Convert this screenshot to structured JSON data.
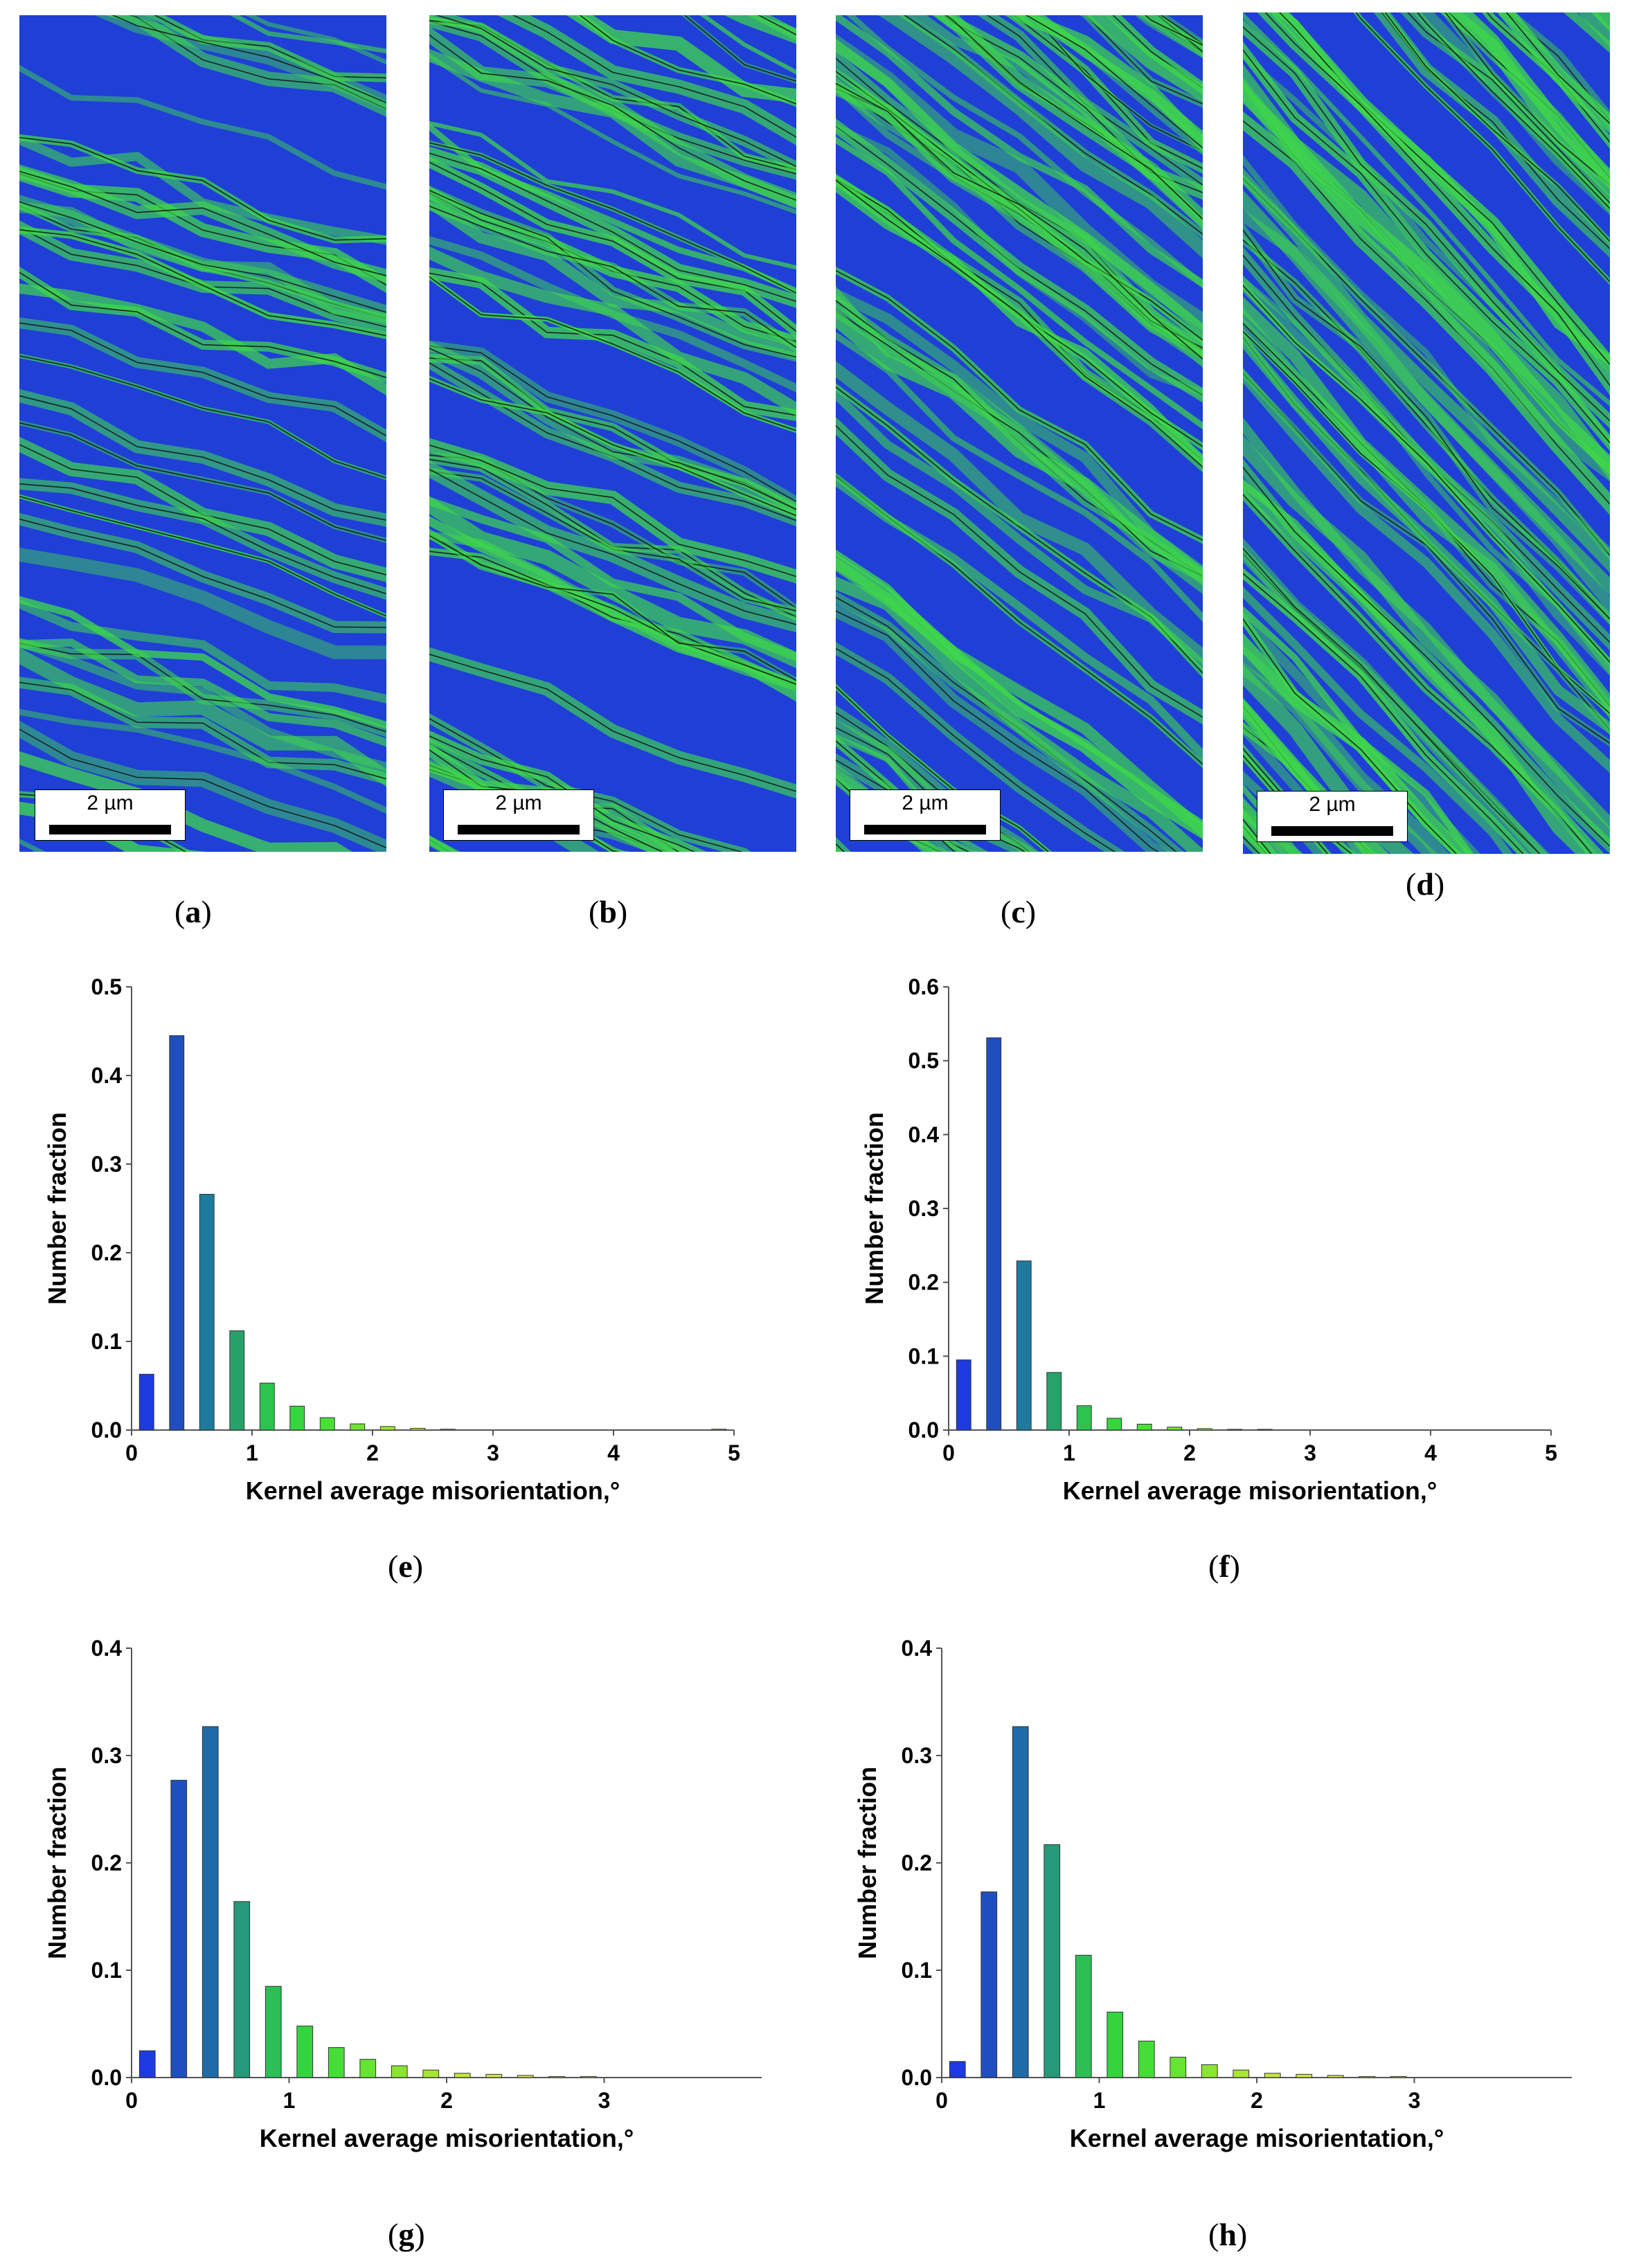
{
  "maps": [
    {
      "id": "a",
      "scale_text": "2 µm",
      "label": "a"
    },
    {
      "id": "b",
      "scale_text": "2 µm",
      "label": "b"
    },
    {
      "id": "c",
      "scale_text": "2 µm",
      "label": "c"
    },
    {
      "id": "d",
      "scale_text": "2 µm",
      "label": "d"
    }
  ],
  "colors": {
    "map_blue": "#1f3fd6",
    "map_green": "#3fd84a",
    "boundary": "#111111"
  },
  "chart_data": [
    {
      "id": "e",
      "label": "e",
      "type": "bar",
      "xlabel": "Kernel average misorientation,°",
      "ylabel": "Number fraction",
      "xlim": [
        0,
        5
      ],
      "ylim": [
        0,
        0.5
      ],
      "xticks": [
        "0",
        "1",
        "2",
        "3",
        "4",
        "5"
      ],
      "yticks": [
        "0.0",
        "0.1",
        "0.2",
        "0.3",
        "0.4",
        "0.5"
      ],
      "bar_width": 0.12,
      "x": [
        0.125,
        0.375,
        0.625,
        0.875,
        1.125,
        1.375,
        1.625,
        1.875,
        2.125,
        2.375,
        2.625,
        4.875
      ],
      "values": [
        0.063,
        0.445,
        0.266,
        0.112,
        0.053,
        0.027,
        0.014,
        0.007,
        0.004,
        0.002,
        0.001,
        0.001
      ],
      "bar_colors": [
        "#1d3be0",
        "#1f4fbf",
        "#1f7aa0",
        "#26a26a",
        "#2cc44f",
        "#35d63e",
        "#49e035",
        "#6ee432",
        "#a2e634",
        "#c7e63a",
        "#d6e64a",
        "#d6e64a"
      ]
    },
    {
      "id": "f",
      "label": "f",
      "type": "bar",
      "xlabel": "Kernel average misorientation,°",
      "ylabel": "Number fraction",
      "xlim": [
        0,
        5
      ],
      "ylim": [
        0,
        0.6
      ],
      "xticks": [
        "0",
        "1",
        "2",
        "3",
        "4",
        "5"
      ],
      "yticks": [
        "0.0",
        "0.1",
        "0.2",
        "0.3",
        "0.4",
        "0.5",
        "0.6"
      ],
      "bar_width": 0.12,
      "x": [
        0.125,
        0.375,
        0.625,
        0.875,
        1.125,
        1.375,
        1.625,
        1.875,
        2.125,
        2.375,
        2.625
      ],
      "values": [
        0.095,
        0.531,
        0.229,
        0.078,
        0.033,
        0.016,
        0.008,
        0.004,
        0.002,
        0.001,
        0.001
      ],
      "bar_colors": [
        "#1d3be0",
        "#1f4fbf",
        "#1f7aa0",
        "#26a26a",
        "#2cc44f",
        "#35d63e",
        "#49e035",
        "#6ee432",
        "#a2e634",
        "#c7e63a",
        "#d6e64a"
      ]
    },
    {
      "id": "g",
      "label": "g",
      "type": "bar",
      "xlabel": "Kernel average misorientation,°",
      "ylabel": "Number fraction",
      "xlim": [
        0,
        4
      ],
      "ylim": [
        0,
        0.4
      ],
      "xticks": [
        "0",
        "1",
        "2",
        "3"
      ],
      "yticks": [
        "0.0",
        "0.1",
        "0.2",
        "0.3",
        "0.4"
      ],
      "bar_width": 0.1,
      "x": [
        0.1,
        0.3,
        0.5,
        0.7,
        0.9,
        1.1,
        1.3,
        1.5,
        1.7,
        1.9,
        2.1,
        2.3,
        2.5,
        2.7,
        2.9
      ],
      "values": [
        0.025,
        0.277,
        0.327,
        0.164,
        0.085,
        0.048,
        0.028,
        0.017,
        0.011,
        0.007,
        0.004,
        0.003,
        0.002,
        0.001,
        0.001
      ],
      "bar_colors": [
        "#1d3be0",
        "#1f4fbf",
        "#1f6aa8",
        "#25997a",
        "#2bbf55",
        "#34d43f",
        "#45de36",
        "#66e333",
        "#8ae533",
        "#a8e635",
        "#c2e63a",
        "#d2e645",
        "#dde654",
        "#e2e662",
        "#e6e670"
      ]
    },
    {
      "id": "h",
      "label": "h",
      "type": "bar",
      "xlabel": "Kernel average misorientation,°",
      "ylabel": "Number fraction",
      "xlim": [
        0,
        4
      ],
      "ylim": [
        0,
        0.4
      ],
      "xticks": [
        "0",
        "1",
        "2",
        "3"
      ],
      "yticks": [
        "0.0",
        "0.1",
        "0.2",
        "0.3",
        "0.4"
      ],
      "bar_width": 0.1,
      "x": [
        0.1,
        0.3,
        0.5,
        0.7,
        0.9,
        1.1,
        1.3,
        1.5,
        1.7,
        1.9,
        2.1,
        2.3,
        2.5,
        2.7,
        2.9
      ],
      "values": [
        0.015,
        0.173,
        0.327,
        0.217,
        0.114,
        0.061,
        0.034,
        0.019,
        0.012,
        0.007,
        0.004,
        0.003,
        0.002,
        0.001,
        0.001
      ],
      "bar_colors": [
        "#1d3be0",
        "#1f4fbf",
        "#1f6aa8",
        "#25997a",
        "#2bbf55",
        "#34d43f",
        "#45de36",
        "#66e333",
        "#8ae533",
        "#a8e635",
        "#c2e63a",
        "#d2e645",
        "#dde654",
        "#e2e662",
        "#e6e670"
      ]
    }
  ]
}
